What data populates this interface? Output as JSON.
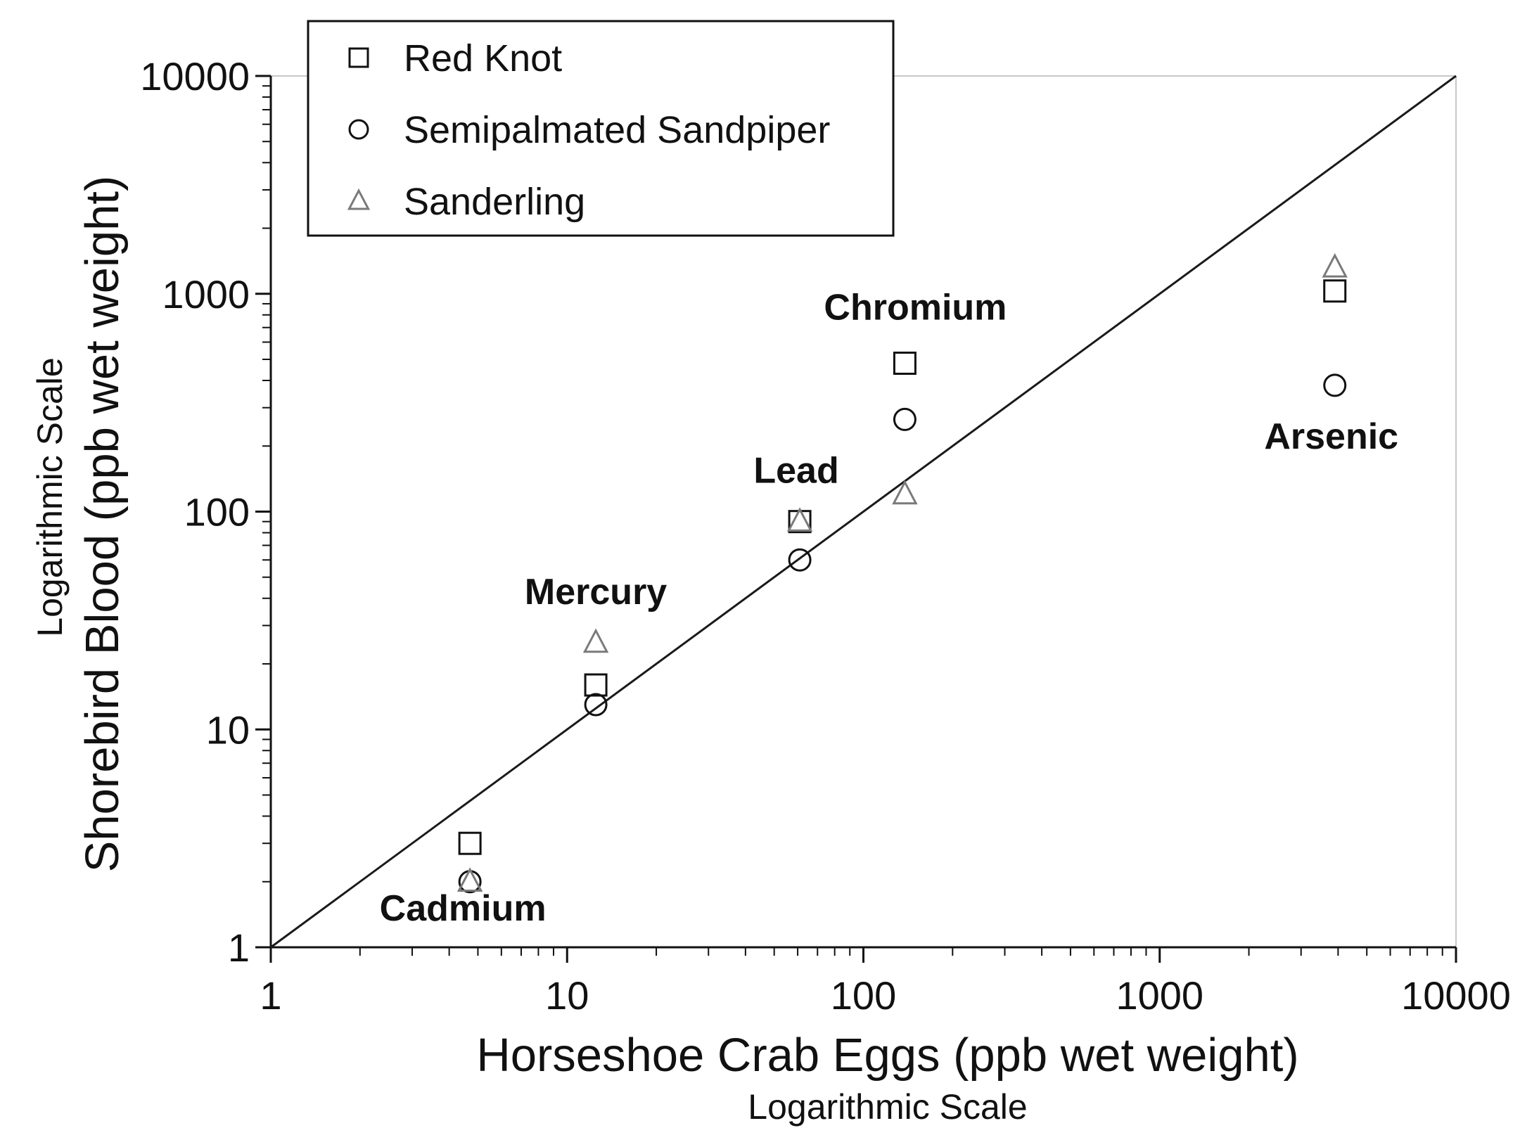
{
  "chart_data": {
    "type": "scatter",
    "xlabel": "Horseshoe Crab Eggs (ppb wet weight)",
    "xlabel_note": "Logarithmic Scale",
    "ylabel": "Shorebird Blood (ppb wet weight)",
    "ylabel_note": "Logarithmic Scale",
    "xscale": "log",
    "yscale": "log",
    "xlim": [
      1,
      10000
    ],
    "ylim": [
      1,
      10000
    ],
    "x_ticks": [
      "1",
      "10",
      "100",
      "1000",
      "10000"
    ],
    "y_ticks": [
      "1",
      "10",
      "100",
      "1000",
      "10000"
    ],
    "grid": false,
    "reference_line": "y = x",
    "legend_position": "top-left",
    "series": [
      {
        "name": "Red Knot",
        "marker": "square",
        "points": [
          {
            "element": "Cadmium",
            "x": 4.7,
            "y": 3
          },
          {
            "element": "Mercury",
            "x": 12.5,
            "y": 16
          },
          {
            "element": "Lead",
            "x": 61,
            "y": 90
          },
          {
            "element": "Chromium",
            "x": 138,
            "y": 480
          },
          {
            "element": "Arsenic",
            "x": 3900,
            "y": 1030
          }
        ]
      },
      {
        "name": "Semipalmated Sandpiper",
        "marker": "circle",
        "points": [
          {
            "element": "Cadmium",
            "x": 4.7,
            "y": 2
          },
          {
            "element": "Mercury",
            "x": 12.5,
            "y": 13
          },
          {
            "element": "Lead",
            "x": 61,
            "y": 60
          },
          {
            "element": "Chromium",
            "x": 138,
            "y": 265
          },
          {
            "element": "Arsenic",
            "x": 3900,
            "y": 380
          }
        ]
      },
      {
        "name": "Sanderling",
        "marker": "triangle",
        "points": [
          {
            "element": "Cadmium",
            "x": 4.7,
            "y": 2
          },
          {
            "element": "Mercury",
            "x": 12.5,
            "y": 25
          },
          {
            "element": "Lead",
            "x": 61,
            "y": 90
          },
          {
            "element": "Chromium",
            "x": 138,
            "y": 120
          },
          {
            "element": "Arsenic",
            "x": 3900,
            "y": 1320
          }
        ]
      }
    ],
    "annotations": [
      "Cadmium",
      "Mercury",
      "Lead",
      "Chromium",
      "Arsenic"
    ]
  },
  "colors": {
    "axis": "#111111",
    "reference_line": "#1a1a1a",
    "red_knot_marker": "#111111",
    "sandpiper_marker": "#111111",
    "sanderling_marker": "#7a7a7a",
    "background": "#ffffff"
  }
}
